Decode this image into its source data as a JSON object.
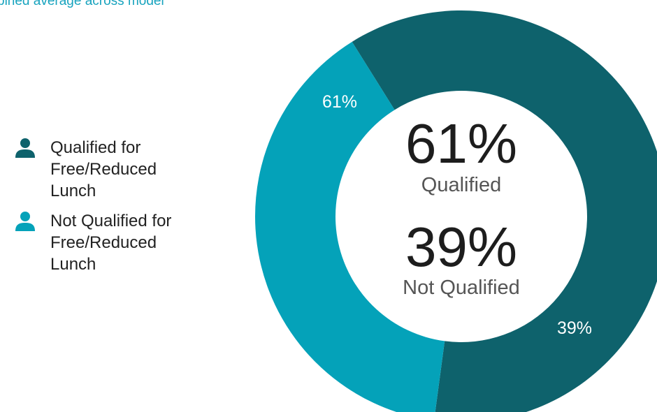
{
  "subtitle": "bined average across model",
  "colors": {
    "qualified": "#0e626c",
    "not_qualified": "#04a2b9"
  },
  "legend": [
    {
      "label": "Qualified for Free/Reduced Lunch",
      "icon": "person-icon",
      "color": "#0e626c"
    },
    {
      "label": "Not Qualified for Free/Reduced Lunch",
      "icon": "person-icon",
      "color": "#04a2b9"
    }
  ],
  "center": {
    "qualified_value": "61%",
    "qualified_label": "Qualified",
    "not_qualified_value": "39%",
    "not_qualified_label": "Not Qualified"
  },
  "chart_data": {
    "type": "pie",
    "donut": true,
    "categories": [
      "Qualified for Free/Reduced Lunch",
      "Not Qualified for Free/Reduced Lunch"
    ],
    "values": [
      61,
      39
    ],
    "data_labels": [
      "61%",
      "39%"
    ],
    "colors": [
      "#0e626c",
      "#04a2b9"
    ],
    "legend_position": "left"
  }
}
